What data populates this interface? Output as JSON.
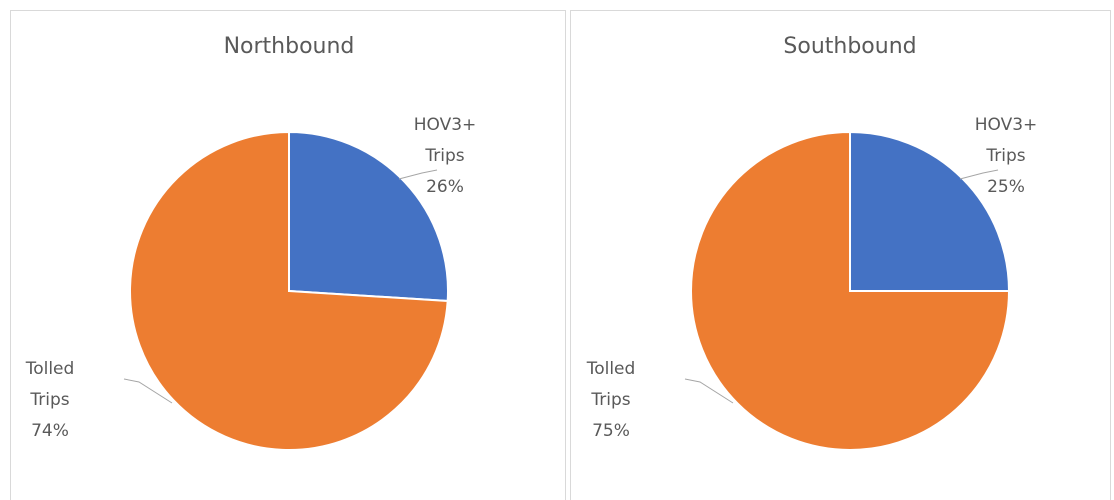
{
  "chart_data": [
    {
      "type": "pie",
      "title": "Northbound",
      "categories": [
        "HOV3+ Trips",
        "Tolled Trips"
      ],
      "values": [
        26,
        74
      ],
      "value_labels": [
        "26%",
        "74%"
      ],
      "colors": [
        "#4472c4",
        "#ed7d31"
      ]
    },
    {
      "type": "pie",
      "title": "Southbound",
      "categories": [
        "HOV3+ Trips",
        "Tolled Trips"
      ],
      "values": [
        25,
        75
      ],
      "value_labels": [
        "25%",
        "75%"
      ],
      "colors": [
        "#4472c4",
        "#ed7d31"
      ]
    }
  ]
}
